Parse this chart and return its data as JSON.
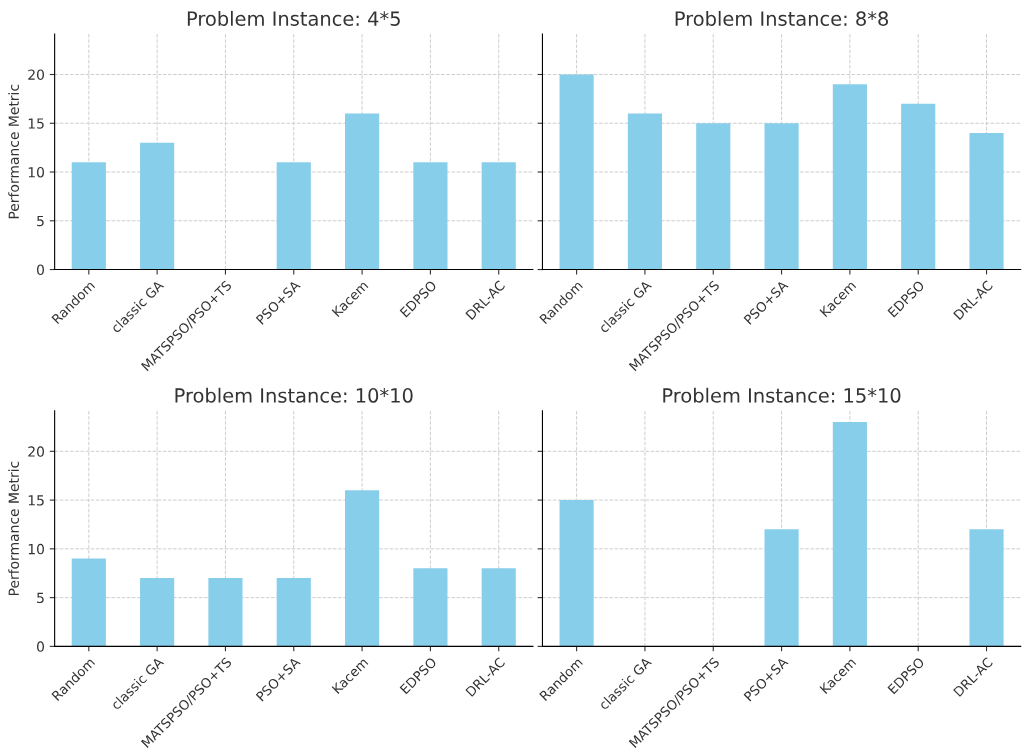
{
  "chart_data": [
    {
      "type": "bar",
      "title": "Problem Instance: 4*5",
      "ylabel": "Performance Metric",
      "categories": [
        "Random",
        "classic GA",
        "MATSPSO/PSO+TS",
        "PSO+SA",
        "Kacem",
        "EDPSO",
        "DRL-AC"
      ],
      "values": [
        11,
        13,
        null,
        11,
        16,
        11,
        11
      ],
      "color": "#87ceeb",
      "ylim": [
        0,
        24.15
      ],
      "yticks": [
        0,
        5,
        10,
        15,
        20
      ],
      "grid": true
    },
    {
      "type": "bar",
      "title": "Problem Instance: 8*8",
      "categories": [
        "Random",
        "classic GA",
        "MATSPSO/PSO+TS",
        "PSO+SA",
        "Kacem",
        "EDPSO",
        "DRL-AC"
      ],
      "values": [
        20,
        16,
        15,
        15,
        19,
        17,
        14
      ],
      "color": "#87ceeb",
      "ylim": [
        0,
        24.15
      ],
      "yticks": [
        0,
        5,
        10,
        15,
        20
      ],
      "grid": true,
      "tick_labels": "x"
    },
    {
      "type": "bar",
      "title": "Problem Instance: 10*10",
      "ylabel": "Performance Metric",
      "categories": [
        "Random",
        "classic GA",
        "MATSPSO/PSO+TS",
        "PSO+SA",
        "Kacem",
        "EDPSO",
        "DRL-AC"
      ],
      "values": [
        9,
        7,
        7,
        7,
        16,
        8,
        8
      ],
      "color": "#87ceeb",
      "ylim": [
        0,
        24.15
      ],
      "yticks": [
        0,
        5,
        10,
        15,
        20
      ],
      "grid": true
    },
    {
      "type": "bar",
      "title": "Problem Instance: 15*10",
      "categories": [
        "Random",
        "classic GA",
        "MATSPSO/PSO+TS",
        "PSO+SA",
        "Kacem",
        "EDPSO",
        "DRL-AC"
      ],
      "values": [
        15,
        null,
        null,
        12,
        23,
        null,
        12
      ],
      "color": "#87ceeb",
      "ylim": [
        0,
        24.15
      ],
      "yticks": [
        0,
        5,
        10,
        15,
        20
      ],
      "grid": true,
      "tick_labels": "x"
    }
  ]
}
